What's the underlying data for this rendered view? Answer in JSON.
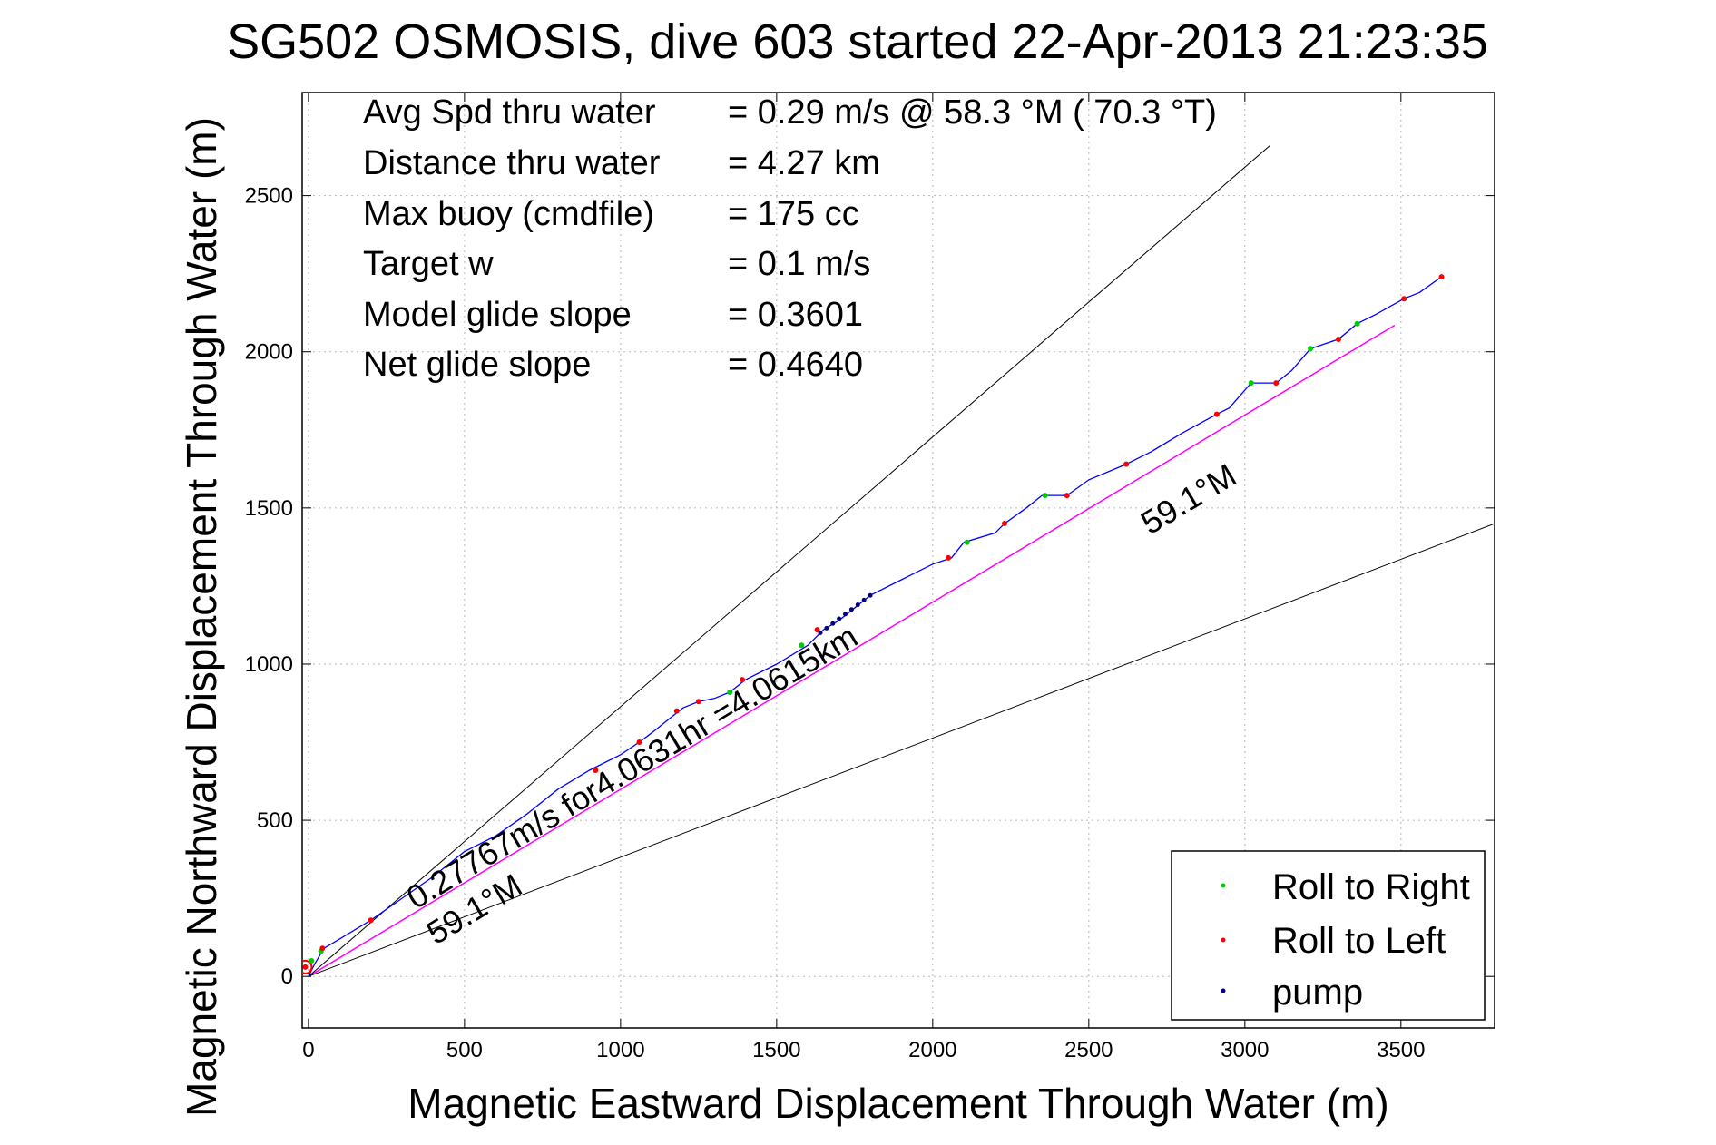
{
  "chart_data": {
    "type": "line",
    "title": "SG502 OSMOSIS, dive 603 started 22-Apr-2013 21:23:35",
    "xlabel": "Magnetic Eastward Displacement Through Water (m)",
    "ylabel": "Magnetic Northward Displacement Through Water (m)",
    "xlim": [
      -20,
      3800
    ],
    "ylim": [
      -165,
      2830
    ],
    "x_ticks": [
      0,
      500,
      1000,
      1500,
      2000,
      2500,
      3000,
      3500
    ],
    "y_ticks": [
      0,
      500,
      1000,
      1500,
      2000,
      2500
    ],
    "grid": true,
    "legend_position": "bottom-right",
    "colors": {
      "track": "#0000ff",
      "roll_right": "#00cc00",
      "roll_left": "#ff0000",
      "pump": "#000080",
      "heading_line": "#ff00ff",
      "envelope": "#000000"
    },
    "stats": [
      {
        "label": "Avg Spd thru water",
        "value": "=  0.29 m/s @  58.3 °M ( 70.3 °T)"
      },
      {
        "label": "Distance thru water",
        "value": "=  4.27 km"
      },
      {
        "label": "Max buoy (cmdfile)",
        "value": "= 175 cc"
      },
      {
        "label": "Target w",
        "value": "= 0.1 m/s"
      },
      {
        "label": "Model glide slope",
        "value": "= 0.3601"
      },
      {
        "label": "Net glide slope",
        "value": "= 0.4640"
      }
    ],
    "annotations": {
      "speed": "0.27767m/s for4.0631hr =4.0615km",
      "heading_upper": "59.1°M",
      "heading_lower": "59.1°M"
    },
    "series": [
      {
        "name": "track",
        "x": [
          0,
          20,
          50,
          100,
          200,
          300,
          400,
          500,
          600,
          700,
          800,
          900,
          1000,
          1060,
          1100,
          1150,
          1200,
          1250,
          1300,
          1350,
          1400,
          1500,
          1600,
          1650,
          1700,
          1800,
          1900,
          2000,
          2060,
          2100,
          2200,
          2230,
          2300,
          2350,
          2430,
          2500,
          2620,
          2700,
          2800,
          2910,
          2950,
          3020,
          3100,
          3150,
          3210,
          3300,
          3360,
          3420,
          3510,
          3560,
          3630
        ],
        "y": [
          0,
          40,
          90,
          120,
          180,
          250,
          320,
          400,
          450,
          520,
          600,
          660,
          710,
          750,
          780,
          820,
          860,
          880,
          890,
          910,
          950,
          1000,
          1060,
          1110,
          1140,
          1220,
          1270,
          1320,
          1340,
          1390,
          1420,
          1450,
          1500,
          1540,
          1540,
          1590,
          1640,
          1680,
          1740,
          1800,
          1820,
          1900,
          1900,
          1940,
          2010,
          2040,
          2090,
          2120,
          2170,
          2190,
          2240
        ]
      },
      {
        "name": "Roll to Right",
        "x": [
          10,
          40,
          1350,
          1580,
          2110,
          2360,
          3020,
          3210,
          3360
        ],
        "y": [
          50,
          80,
          910,
          1060,
          1390,
          1540,
          1900,
          2010,
          2090
        ]
      },
      {
        "name": "Roll to Left",
        "x": [
          -10,
          45,
          200,
          920,
          1060,
          1180,
          1250,
          1390,
          1630,
          2050,
          2230,
          2430,
          2620,
          2910,
          3100,
          3300,
          3510,
          3630
        ],
        "y": [
          30,
          90,
          180,
          660,
          750,
          850,
          880,
          950,
          1110,
          1340,
          1450,
          1540,
          1640,
          1800,
          1900,
          2040,
          2170,
          2240
        ]
      },
      {
        "name": "pump",
        "x": [
          1640,
          1660,
          1680,
          1700,
          1720,
          1740,
          1760,
          1780,
          1800
        ],
        "y": [
          1100,
          1115,
          1130,
          1145,
          1160,
          1175,
          1190,
          1205,
          1220
        ]
      }
    ],
    "reference_lines": [
      {
        "name": "heading",
        "x": [
          0,
          3480
        ],
        "y": [
          0,
          2085
        ]
      },
      {
        "name": "upper envelope",
        "x": [
          0,
          3080
        ],
        "y": [
          0,
          2660
        ]
      },
      {
        "name": "lower envelope",
        "x": [
          0,
          3800
        ],
        "y": [
          0,
          1450
        ]
      }
    ]
  }
}
